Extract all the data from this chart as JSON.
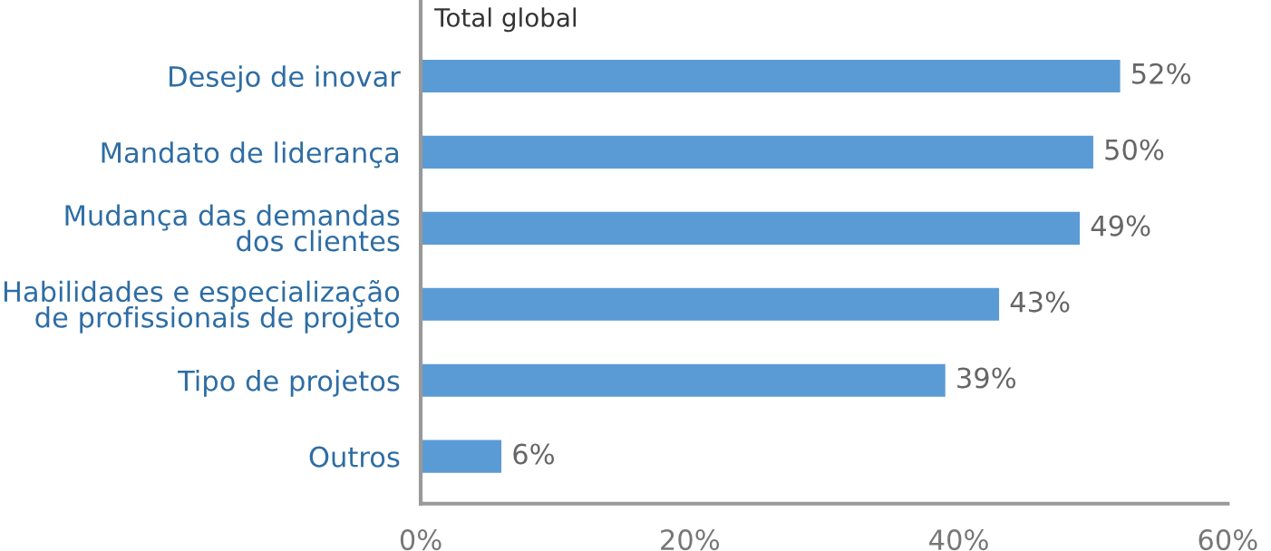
{
  "chart_data": {
    "type": "bar",
    "orientation": "horizontal",
    "title": "Total global",
    "categories": [
      "Desejo de inovar",
      "Mandato de liderança",
      "Mudança das demandas\ndos clientes",
      "Habilidades e especialização\nde profissionais de projeto",
      "Tipo de projetos",
      "Outros"
    ],
    "values": [
      52,
      50,
      49,
      43,
      39,
      6
    ],
    "value_labels": [
      "52%",
      "50%",
      "49%",
      "43%",
      "39%",
      "6%"
    ],
    "color": "#5b9bd5",
    "xlim": [
      0,
      60
    ],
    "xticks": [
      {
        "value": 0,
        "label": "0%"
      },
      {
        "value": 20,
        "label": "20%"
      },
      {
        "value": 40,
        "label": "40%"
      },
      {
        "value": 60,
        "label": "60%"
      }
    ],
    "grid": false,
    "legend": false
  }
}
